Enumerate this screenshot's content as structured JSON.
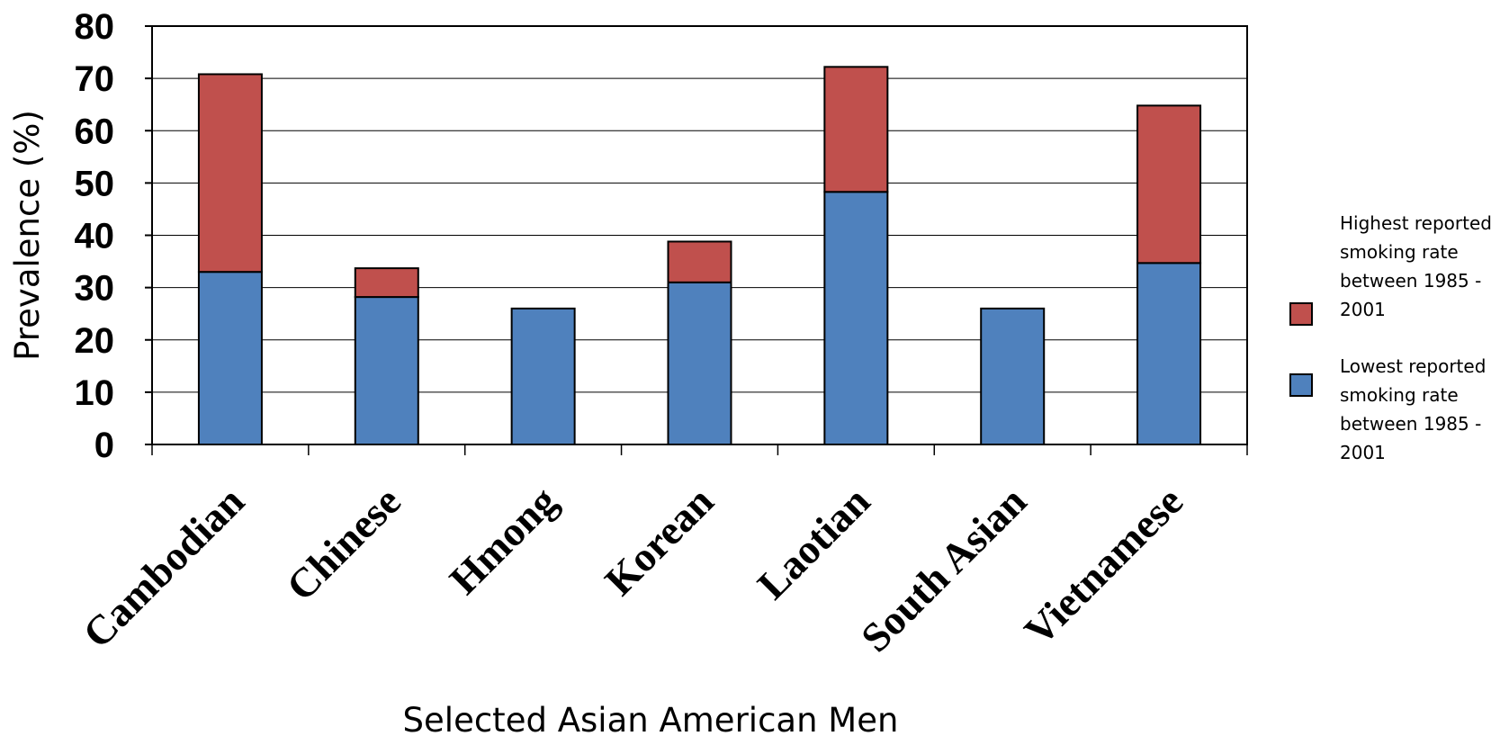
{
  "chart_data": {
    "type": "bar",
    "stacked": true,
    "categories": [
      "Cambodian",
      "Chinese",
      "Hmong",
      "Korean",
      "Laotian",
      "South Asian",
      "Vietnamese"
    ],
    "series": [
      {
        "name": "Lowest reported smoking rate between 1985 - 2001",
        "legend_lines": [
          "Lowest reported",
          "smoking rate",
          "between 1985 -",
          "2001"
        ],
        "color": "#4F81BD",
        "values": [
          33,
          28.2,
          26,
          31,
          48.3,
          26,
          34.7
        ]
      },
      {
        "name": "Highest reported smoking rate between 1985 - 2001",
        "legend_lines": [
          "Highest reported",
          "smoking rate",
          "between 1985 -",
          "2001"
        ],
        "color": "#C0504D",
        "values": [
          37.8,
          5.5,
          0,
          7.8,
          23.9,
          0,
          30.1
        ]
      }
    ],
    "xlabel": "Selected Asian American Men",
    "ylabel": "Prevalence (%)",
    "ylim": [
      0,
      80
    ],
    "yticks": [
      "0",
      "10",
      "20",
      "30",
      "40",
      "50",
      "60",
      "70",
      "80"
    ],
    "grid": true,
    "legend_position": "right"
  }
}
